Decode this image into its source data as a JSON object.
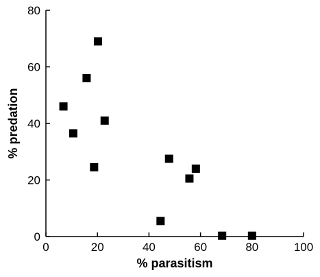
{
  "chart_data": {
    "type": "scatter",
    "title": "",
    "xlabel": "% parasitism",
    "ylabel": "% predation",
    "xlim": [
      0,
      100
    ],
    "ylim": [
      0,
      80
    ],
    "x_ticks": [
      0,
      20,
      40,
      60,
      80,
      100
    ],
    "y_ticks": [
      0,
      20,
      40,
      60,
      80
    ],
    "x_tick_labels": [
      "0",
      "20",
      "40",
      "60",
      "80",
      "100"
    ],
    "y_tick_labels": [
      "0",
      "20",
      "40",
      "60",
      "80"
    ],
    "grid": false,
    "legend": "none",
    "marker": "square",
    "marker_color": "#000000",
    "points": [
      {
        "x": 6.8,
        "y": 46.0
      },
      {
        "x": 10.6,
        "y": 36.5
      },
      {
        "x": 15.8,
        "y": 56.0
      },
      {
        "x": 18.7,
        "y": 24.5
      },
      {
        "x": 20.2,
        "y": 69.0
      },
      {
        "x": 22.8,
        "y": 41.0
      },
      {
        "x": 44.5,
        "y": 5.5
      },
      {
        "x": 47.8,
        "y": 27.5
      },
      {
        "x": 55.7,
        "y": 20.5
      },
      {
        "x": 58.2,
        "y": 24.0
      },
      {
        "x": 68.4,
        "y": 0.3
      },
      {
        "x": 80.0,
        "y": 0.3
      }
    ]
  }
}
